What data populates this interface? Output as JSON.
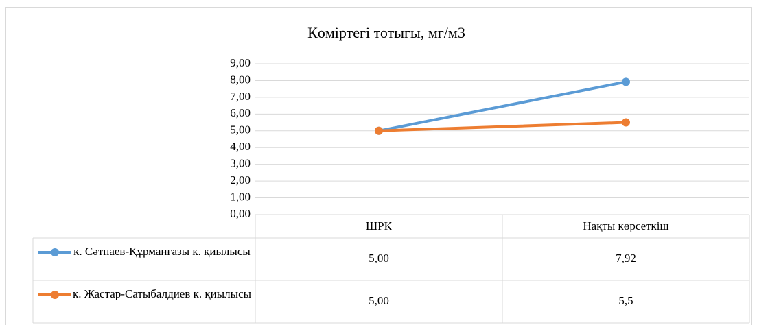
{
  "chart_data": {
    "type": "line",
    "title": "Көміртегі тотығы, мг/м3",
    "categories": [
      "ШРК",
      "Нақты көрсеткіш"
    ],
    "series": [
      {
        "name": "к. Сәтпаев-Құрманғазы к. қиылысы",
        "color": "#5b9bd5",
        "values": [
          5,
          7.92
        ],
        "value_labels": [
          "5,00",
          "7,92"
        ]
      },
      {
        "name": "к. Жастар-Сатыбалдиев к. қиылысы",
        "color": "#ed7d31",
        "values": [
          5,
          5.5
        ],
        "value_labels": [
          "5,00",
          "5,5"
        ]
      }
    ],
    "ylim": [
      0,
      9
    ],
    "yticks": [
      {
        "value": 0,
        "label": "0,00"
      },
      {
        "value": 1,
        "label": "1,00"
      },
      {
        "value": 2,
        "label": "2,00"
      },
      {
        "value": 3,
        "label": "3,00"
      },
      {
        "value": 4,
        "label": "4,00"
      },
      {
        "value": 5,
        "label": "5,00"
      },
      {
        "value": 6,
        "label": "6,00"
      },
      {
        "value": 7,
        "label": "7,00"
      },
      {
        "value": 8,
        "label": "8,00"
      },
      {
        "value": 9,
        "label": "9,00"
      }
    ],
    "grid": true
  }
}
